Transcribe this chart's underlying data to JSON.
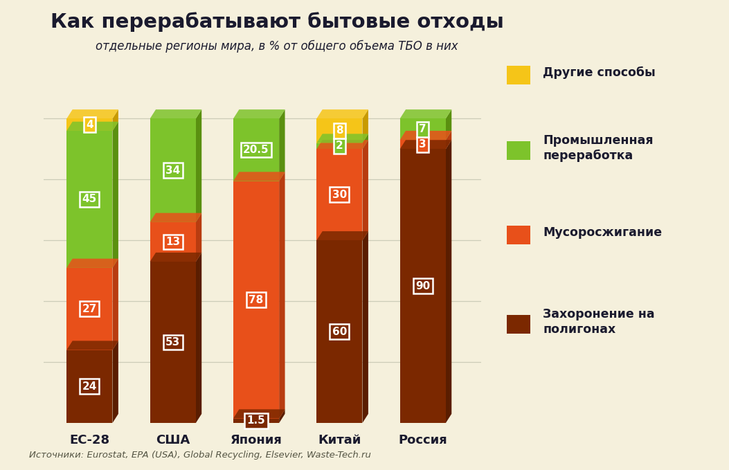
{
  "title": "Как перерабатывают бытовые отходы",
  "subtitle": "отдельные регионы мира, в % от общего объема ТБО в них",
  "categories": [
    "ЕС-28",
    "США",
    "Япония",
    "Китай",
    "Россия"
  ],
  "series": {
    "landfill": [
      24,
      53,
      1.5,
      60,
      90
    ],
    "incineration": [
      27,
      13,
      78,
      30,
      3
    ],
    "recycling": [
      45,
      34,
      20.5,
      2,
      7
    ],
    "other": [
      4,
      0,
      0,
      8,
      0
    ]
  },
  "labels": {
    "landfill": [
      "24",
      "53",
      "1.5",
      "60",
      "90"
    ],
    "incineration": [
      "27",
      "13",
      "78",
      "30",
      "3"
    ],
    "recycling": [
      "45",
      "34",
      "20.5",
      "2",
      "7"
    ],
    "other": [
      "4",
      "",
      "",
      "8",
      ""
    ]
  },
  "colors": {
    "landfill": "#7B2800",
    "incineration": "#E8501A",
    "recycling": "#7DC32B",
    "other": "#F5C518"
  },
  "shadow_colors": {
    "landfill": "#5A1D00",
    "incineration": "#B83C10",
    "recycling": "#5A9010",
    "other": "#C89A00"
  },
  "legend_labels": {
    "other": "Другие способы",
    "recycling": "Промышленная\nпереработка",
    "incineration": "Мусоросжигание",
    "landfill": "Захоронение на\nполигонах"
  },
  "source_text": "Источники: Eurostat, EPA (USA), Global Recycling, Elsevier, Waste-Tech.ru",
  "background_color": "#F5F0DC",
  "bar_width": 0.55,
  "ylim": [
    0,
    105
  ]
}
